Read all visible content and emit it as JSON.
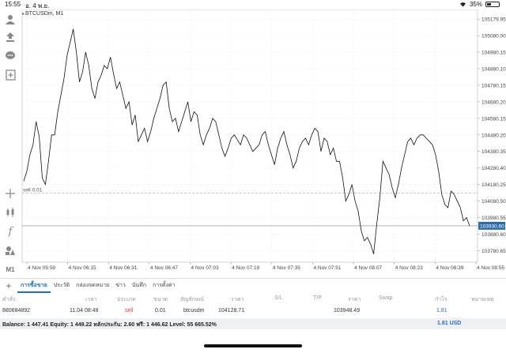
{
  "status_bar": {
    "time": "15:55",
    "date": "อ. 4 พ.ย.",
    "battery": "35%",
    "battery_level": 0.35,
    "icons": [
      "wifi-icon",
      "battery-icon"
    ]
  },
  "left_toolbar": {
    "buttons": [
      {
        "name": "account-icon"
      },
      {
        "name": "trade-icon"
      },
      {
        "name": "chat-icon"
      },
      {
        "name": "add-chart-icon"
      },
      {
        "name": "crosshair-icon"
      },
      {
        "name": "candlestick-icon"
      },
      {
        "name": "indicator-icon"
      },
      {
        "name": "objects-icon"
      }
    ],
    "timeframe": "M1"
  },
  "chart": {
    "symbol": "BTCUSDm",
    "timeframe": "M1",
    "order_line_label": "sell 0.01",
    "current_price": "103930.60",
    "y_ticks": [
      "105179.95",
      "105080.00",
      "104980.15",
      "104880.10",
      "104780.15",
      "104680.20",
      "104580.15",
      "104480.20",
      "104380.35",
      "104280.40",
      "104180.25",
      "104080.50",
      "103980.55",
      "103880.60",
      "103780.65"
    ],
    "x_ticks": [
      "4 Nov 05:59",
      "4 Nov 06:15",
      "4 Nov 06:31",
      "4 Nov 06:47",
      "4 Nov 07:03",
      "4 Nov 07:19",
      "4 Nov 07:35",
      "4 Nov 07:51",
      "4 Nov 08:07",
      "4 Nov 08:23",
      "4 Nov 08:39",
      "4 Nov 08:55"
    ]
  },
  "chart_data": {
    "type": "line",
    "title": "BTCUSDm, M1",
    "xlabel": "",
    "ylabel": "",
    "ylim": [
      103720,
      105200
    ],
    "grid": true,
    "series": [
      {
        "values": [
          104200,
          104260,
          104360,
          104420,
          104560,
          104470,
          104220,
          104180,
          104320,
          104480,
          104480,
          104620,
          104720,
          104820,
          104960,
          105040,
          105120,
          104980,
          104800,
          104860,
          104980,
          104900,
          104760,
          104700,
          104800,
          104840,
          104900,
          104880,
          104950,
          104850,
          104760,
          104800,
          104720,
          104640,
          104680,
          104540,
          104600,
          104440,
          104480,
          104520,
          104440,
          104500,
          104580,
          104640,
          104700,
          104780,
          104800,
          104640,
          104560,
          104580,
          104500,
          104560,
          104620,
          104680,
          104560,
          104620,
          104600,
          104480,
          104420,
          104480,
          104520,
          104580,
          104560,
          104480,
          104400,
          104350,
          104400,
          104460,
          104480,
          104450,
          104420,
          104480,
          104460,
          104420,
          104380,
          104400,
          104420,
          104480,
          104500,
          104420,
          104360,
          104300,
          104400,
          104460,
          104500,
          104420,
          104360,
          104280,
          104320,
          104400,
          104440,
          104460,
          104420,
          104480,
          104520,
          104500,
          104380,
          104460,
          104440,
          104360,
          104400,
          104320,
          104320,
          104220,
          104080,
          104120,
          104180,
          104080,
          104020,
          103900,
          103840,
          103860,
          103820,
          103760,
          103940,
          104100,
          104320,
          104280,
          104240,
          104160,
          104100,
          104180,
          104280,
          104360,
          104440,
          104460,
          104420,
          104460,
          104480,
          104480,
          104460,
          104440,
          104420,
          104360,
          104260,
          104120,
          104060,
          104040,
          104140,
          104120,
          104080,
          104040,
          103960,
          103980,
          103930
        ]
      }
    ]
  },
  "tabs": [
    {
      "label": "การซื้อขาย",
      "active": true
    },
    {
      "label": "ประวัติ",
      "active": false
    },
    {
      "label": "กล่องจดหมาย",
      "active": false
    },
    {
      "label": "ข่าว",
      "active": false
    },
    {
      "label": "บันทึก",
      "active": false
    },
    {
      "label": "การตั้งค่า",
      "active": false
    }
  ],
  "table": {
    "headers": [
      "คำสั่ง",
      "เวลา",
      "ประเภท",
      "ขนาด",
      "สัญลักษณ์",
      "ราคา",
      "S/L",
      "T/P",
      "ราคา",
      "Swap",
      "กำไร",
      "หมายเหตุ"
    ],
    "rows": [
      {
        "order": "880684892",
        "time": "11.04 08:48",
        "type": "sell",
        "size": "0.01",
        "symbol": "btcusdm",
        "price": "104128.71",
        "sl": "",
        "tp": "",
        "current": "103948.49",
        "swap": "",
        "profit": "1.81",
        "comment": ""
      }
    ]
  },
  "balance": {
    "text": "Balance: 1 447.41 Equity: 1 449.22 หลักประกัน: 2.60 ฟรี: 1 446.62 Level: 55 665.52%",
    "total_profit": "1.81  USD"
  },
  "colors": {
    "accent": "#1f6fd1",
    "sell": "#e03434",
    "price_tag": "#2b6cb0",
    "line": "#111111"
  }
}
